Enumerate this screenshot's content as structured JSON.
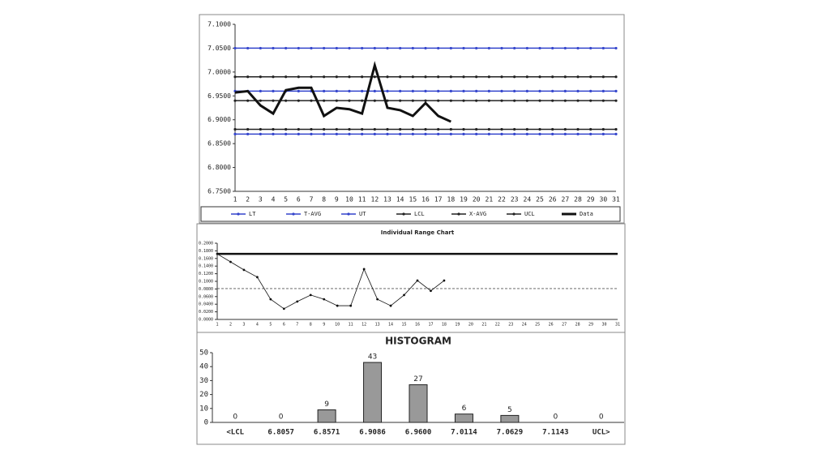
{
  "chart_data": [
    {
      "type": "line",
      "categories": [
        "1",
        "2",
        "3",
        "4",
        "5",
        "6",
        "7",
        "8",
        "9",
        "10",
        "11",
        "12",
        "13",
        "14",
        "15",
        "16",
        "17",
        "18",
        "19",
        "20",
        "21",
        "22",
        "23",
        "24",
        "25",
        "26",
        "27",
        "28",
        "29",
        "30",
        "31"
      ],
      "ylim": [
        6.75,
        7.1
      ],
      "yticks": [
        {
          "value": 6.75,
          "label": "6.7500"
        },
        {
          "value": 6.8,
          "label": "6.8000"
        },
        {
          "value": 6.85,
          "label": "6.8500"
        },
        {
          "value": 6.9,
          "label": "6.9000"
        },
        {
          "value": 6.95,
          "label": "6.9500"
        },
        {
          "value": 7.0,
          "label": "7.0000"
        },
        {
          "value": 7.05,
          "label": "7.0500"
        },
        {
          "value": 7.1,
          "label": "7.1000"
        }
      ],
      "series": [
        {
          "name": "LT",
          "color": "#3344cc",
          "width": 1.5,
          "marker": true,
          "values": [
            6.87,
            6.87,
            6.87,
            6.87,
            6.87,
            6.87,
            6.87,
            6.87,
            6.87,
            6.87,
            6.87,
            6.87,
            6.87,
            6.87,
            6.87,
            6.87,
            6.87,
            6.87,
            6.87,
            6.87,
            6.87,
            6.87,
            6.87,
            6.87,
            6.87,
            6.87,
            6.87,
            6.87,
            6.87,
            6.87,
            6.87
          ]
        },
        {
          "name": "T-AVG",
          "color": "#3344cc",
          "width": 1.5,
          "marker": true,
          "values": [
            6.96,
            6.96,
            6.96,
            6.96,
            6.96,
            6.96,
            6.96,
            6.96,
            6.96,
            6.96,
            6.96,
            6.96,
            6.96,
            6.96,
            6.96,
            6.96,
            6.96,
            6.96,
            6.96,
            6.96,
            6.96,
            6.96,
            6.96,
            6.96,
            6.96,
            6.96,
            6.96,
            6.96,
            6.96,
            6.96,
            6.96
          ]
        },
        {
          "name": "UT",
          "color": "#3344cc",
          "width": 1.5,
          "marker": true,
          "values": [
            7.05,
            7.05,
            7.05,
            7.05,
            7.05,
            7.05,
            7.05,
            7.05,
            7.05,
            7.05,
            7.05,
            7.05,
            7.05,
            7.05,
            7.05,
            7.05,
            7.05,
            7.05,
            7.05,
            7.05,
            7.05,
            7.05,
            7.05,
            7.05,
            7.05,
            7.05,
            7.05,
            7.05,
            7.05,
            7.05,
            7.05
          ]
        },
        {
          "name": "LCL",
          "color": "#222222",
          "width": 1.5,
          "marker": true,
          "values": [
            6.88,
            6.88,
            6.88,
            6.88,
            6.88,
            6.88,
            6.88,
            6.88,
            6.88,
            6.88,
            6.88,
            6.88,
            6.88,
            6.88,
            6.88,
            6.88,
            6.88,
            6.88,
            6.88,
            6.88,
            6.88,
            6.88,
            6.88,
            6.88,
            6.88,
            6.88,
            6.88,
            6.88,
            6.88,
            6.88,
            6.88
          ]
        },
        {
          "name": "X-AVG",
          "color": "#222222",
          "width": 1.5,
          "marker": true,
          "values": [
            6.94,
            6.94,
            6.94,
            6.94,
            6.94,
            6.94,
            6.94,
            6.94,
            6.94,
            6.94,
            6.94,
            6.94,
            6.94,
            6.94,
            6.94,
            6.94,
            6.94,
            6.94,
            6.94,
            6.94,
            6.94,
            6.94,
            6.94,
            6.94,
            6.94,
            6.94,
            6.94,
            6.94,
            6.94,
            6.94,
            6.94
          ]
        },
        {
          "name": "UCL",
          "color": "#222222",
          "width": 1.5,
          "marker": true,
          "values": [
            6.99,
            6.99,
            6.99,
            6.99,
            6.99,
            6.99,
            6.99,
            6.99,
            6.99,
            6.99,
            6.99,
            6.99,
            6.99,
            6.99,
            6.99,
            6.99,
            6.99,
            6.99,
            6.99,
            6.99,
            6.99,
            6.99,
            6.99,
            6.99,
            6.99,
            6.99,
            6.99,
            6.99,
            6.99,
            6.99,
            6.99
          ]
        },
        {
          "name": "Data",
          "color": "#111111",
          "width": 3,
          "marker": false,
          "values": [
            6.957,
            6.96,
            6.93,
            6.913,
            6.962,
            6.967,
            6.967,
            6.908,
            6.925,
            6.922,
            6.913,
            7.014,
            6.925,
            6.92,
            6.908,
            6.935,
            6.908,
            6.896,
            null,
            null,
            null,
            null,
            null,
            null,
            null,
            null,
            null,
            null,
            null,
            null,
            null
          ]
        }
      ]
    },
    {
      "type": "line",
      "title": "Individual Range Chart",
      "categories": [
        "1",
        "2",
        "3",
        "4",
        "5",
        "6",
        "7",
        "8",
        "9",
        "10",
        "11",
        "12",
        "13",
        "14",
        "15",
        "16",
        "17",
        "18",
        "19",
        "20",
        "21",
        "22",
        "23",
        "24",
        "25",
        "26",
        "27",
        "28",
        "29",
        "30",
        "31"
      ],
      "ylim": [
        0,
        0.2
      ],
      "yticks": [
        {
          "value": 0,
          "label": "0.0000"
        },
        {
          "value": 0.02,
          "label": "0.0200"
        },
        {
          "value": 0.04,
          "label": "0.0400"
        },
        {
          "value": 0.06,
          "label": "0.0600"
        },
        {
          "value": 0.08,
          "label": "0.0800"
        },
        {
          "value": 0.1,
          "label": "0.1000"
        },
        {
          "value": 0.12,
          "label": "0.1200"
        },
        {
          "value": 0.14,
          "label": "0.1400"
        },
        {
          "value": 0.16,
          "label": "0.1600"
        },
        {
          "value": 0.18,
          "label": "0.1800"
        },
        {
          "value": 0.2,
          "label": "0.2000"
        }
      ],
      "series": [
        {
          "color": "#111111",
          "width": 2.5,
          "marker": false,
          "values": [
            0.172,
            0.172,
            0.172,
            0.172,
            0.172,
            0.172,
            0.172,
            0.172,
            0.172,
            0.172,
            0.172,
            0.172,
            0.172,
            0.172,
            0.172,
            0.172,
            0.172,
            0.172,
            0.172,
            0.172,
            0.172,
            0.172,
            0.172,
            0.172,
            0.172,
            0.172,
            0.172,
            0.172,
            0.172,
            0.172,
            0.172
          ]
        },
        {
          "color": "#555555",
          "width": 0.8,
          "marker": false,
          "dash": true,
          "values": [
            0.081,
            0.081,
            0.081,
            0.081,
            0.081,
            0.081,
            0.081,
            0.081,
            0.081,
            0.081,
            0.081,
            0.081,
            0.081,
            0.081,
            0.081,
            0.081,
            0.081,
            0.081,
            0.081,
            0.081,
            0.081,
            0.081,
            0.081,
            0.081,
            0.081,
            0.081,
            0.081,
            0.081,
            0.081,
            0.081,
            0.081
          ]
        },
        {
          "color": "#111111",
          "width": 0.8,
          "marker": true,
          "values": [
            0.172,
            0.151,
            0.13,
            0.111,
            0.053,
            0.028,
            0.047,
            0.064,
            0.053,
            0.036,
            0.036,
            0.132,
            0.053,
            0.036,
            0.064,
            0.102,
            0.075,
            0.102,
            null,
            null,
            null,
            null,
            null,
            null,
            null,
            null,
            null,
            null,
            null,
            null,
            null
          ]
        }
      ]
    },
    {
      "type": "bar",
      "title": "HISTOGRAM",
      "categories": [
        "<LCL",
        "6.8057",
        "6.8571",
        "6.9086",
        "6.9600",
        "7.0114",
        "7.0629",
        "7.1143",
        "UCL>"
      ],
      "values": [
        0,
        0,
        9,
        43,
        27,
        6,
        5,
        0,
        0
      ],
      "color": "#999999",
      "ylim": [
        0,
        50
      ],
      "yticks": [
        0,
        10,
        20,
        30,
        40,
        50
      ]
    }
  ]
}
